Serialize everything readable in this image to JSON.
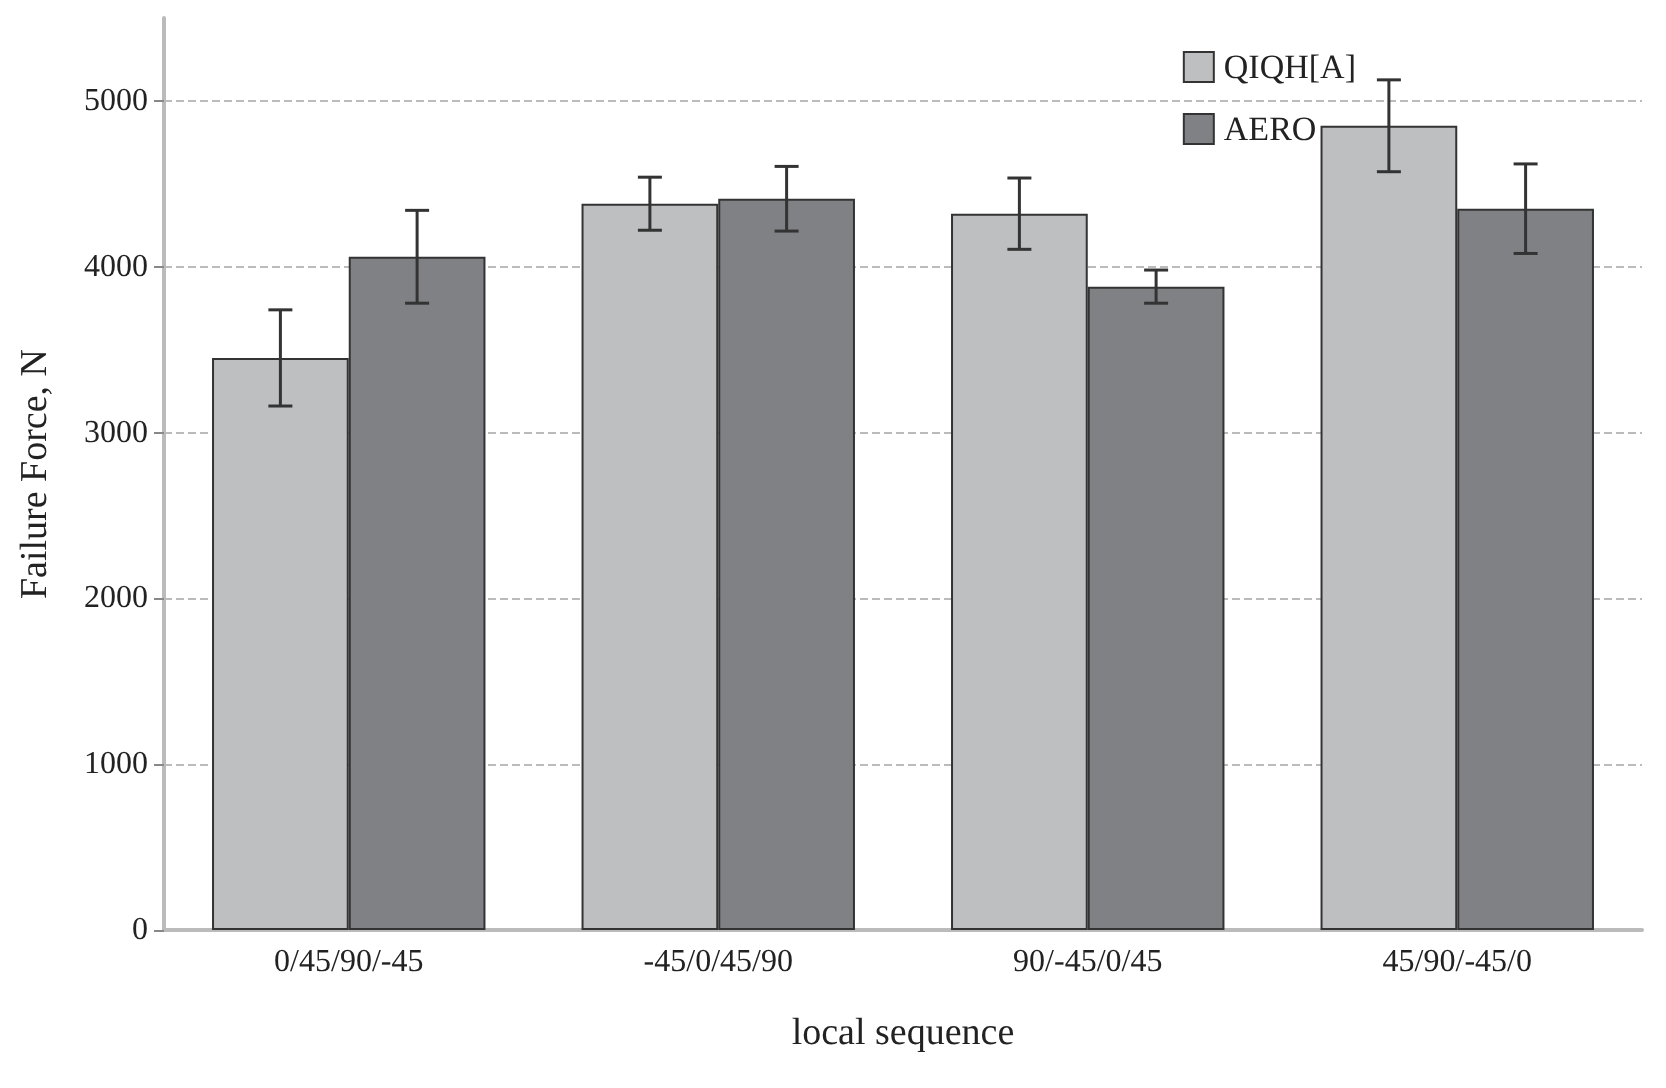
{
  "chart_data": {
    "type": "bar",
    "xlabel": "local sequence",
    "ylabel": "Failure Force, N",
    "categories": [
      "0/45/90/-45",
      "-45/0/45/90",
      "90/-45/0/45",
      "45/90/-45/0"
    ],
    "series": [
      {
        "name": "QIQH[A]",
        "color": "#bebfc1",
        "values": [
          3450,
          4380,
          4320,
          4850
        ],
        "errors": [
          290,
          160,
          215,
          277
        ]
      },
      {
        "name": "AERO",
        "color": "#808185",
        "values": [
          4060,
          4410,
          3880,
          4350
        ],
        "errors": [
          280,
          195,
          100,
          270
        ]
      }
    ],
    "ylim": [
      0,
      5500
    ],
    "yticks": [
      0,
      1000,
      2000,
      3000,
      4000,
      5000
    ],
    "grid": "y",
    "legend": "top right"
  }
}
